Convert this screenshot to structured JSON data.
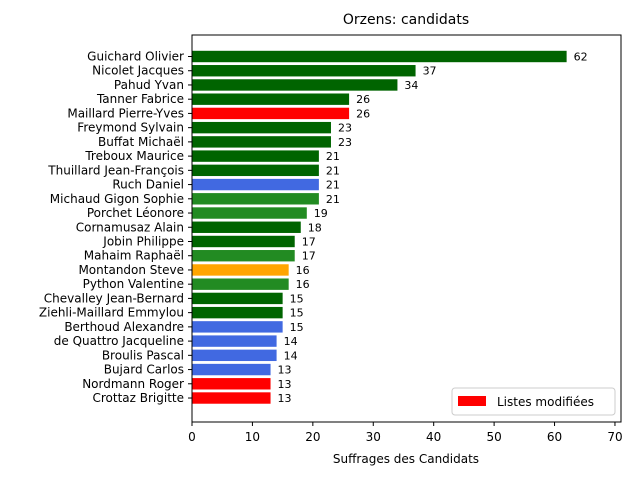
{
  "chart_data": {
    "type": "bar",
    "orientation": "horizontal",
    "title": "Orzens: candidats",
    "xlabel": "Suffrages des Candidats",
    "ylabel": "",
    "xlim": [
      0,
      71
    ],
    "xticks": [
      0,
      10,
      20,
      30,
      40,
      50,
      60,
      70
    ],
    "grid": false,
    "legend_position": "lower-right",
    "legend": [
      {
        "label": "Listes modifiées",
        "color": "#ff0000"
      }
    ],
    "categories": [
      "Guichard Olivier",
      "Nicolet Jacques",
      "Pahud Yvan",
      "Tanner Fabrice",
      "Maillard Pierre-Yves",
      "Freymond Sylvain",
      "Buffat Michaël",
      "Treboux Maurice",
      "Thuillard Jean-François",
      "Ruch Daniel",
      "Michaud Gigon Sophie",
      "Porchet Léonore",
      "Cornamusaz Alain",
      "Jobin Philippe",
      "Mahaim Raphaël",
      "Montandon Steve",
      "Python Valentine",
      "Chevalley Jean-Bernard",
      "Ziehli-Maillard Emmylou",
      "Berthoud Alexandre",
      "de Quattro Jacqueline",
      "Broulis Pascal",
      "Bujard Carlos",
      "Nordmann Roger",
      "Crottaz Brigitte"
    ],
    "values": [
      62,
      37,
      34,
      26,
      26,
      23,
      23,
      21,
      21,
      21,
      21,
      19,
      18,
      17,
      17,
      16,
      16,
      15,
      15,
      15,
      14,
      14,
      13,
      13,
      13
    ],
    "colors": [
      "#006400",
      "#006400",
      "#006400",
      "#006400",
      "#ff0000",
      "#006400",
      "#006400",
      "#006400",
      "#006400",
      "#4169e1",
      "#228b22",
      "#228b22",
      "#006400",
      "#006400",
      "#228b22",
      "#ffa500",
      "#228b22",
      "#006400",
      "#006400",
      "#4169e1",
      "#4169e1",
      "#4169e1",
      "#4169e1",
      "#ff0000",
      "#ff0000"
    ]
  }
}
